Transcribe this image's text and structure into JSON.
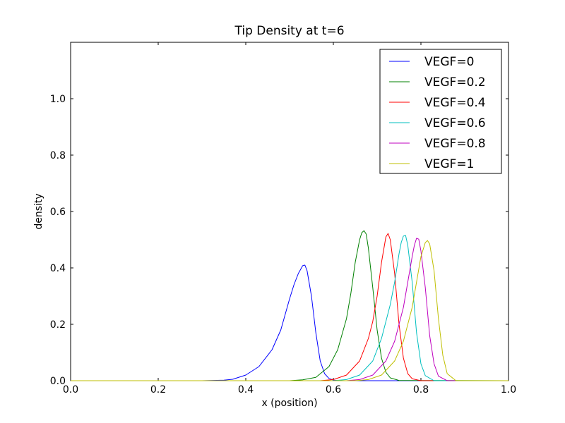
{
  "chart_data": {
    "type": "line",
    "title": "Tip Density at t=6",
    "xlabel": "x (position)",
    "ylabel": "density",
    "xlim": [
      0.0,
      1.0
    ],
    "ylim": [
      0.0,
      1.2
    ],
    "xticks": [
      "0.0",
      "0.2",
      "0.4",
      "0.6",
      "0.8",
      "1.0"
    ],
    "yticks": [
      "0.0",
      "0.2",
      "0.4",
      "0.6",
      "0.8",
      "1.0"
    ],
    "grid": false,
    "legend_position": "top-right",
    "series": [
      {
        "name": "VEGF=0",
        "color": "#0000ff",
        "x": [
          0.0,
          0.3,
          0.35,
          0.37,
          0.4,
          0.43,
          0.46,
          0.48,
          0.5,
          0.51,
          0.52,
          0.53,
          0.535,
          0.54,
          0.55,
          0.56,
          0.57,
          0.58,
          0.59,
          0.6,
          0.62,
          0.65,
          1.0
        ],
        "y": [
          0.0,
          0.0,
          0.002,
          0.005,
          0.02,
          0.05,
          0.11,
          0.18,
          0.29,
          0.34,
          0.38,
          0.408,
          0.41,
          0.39,
          0.3,
          0.17,
          0.07,
          0.025,
          0.008,
          0.002,
          0.0,
          0.0,
          0.0
        ]
      },
      {
        "name": "VEGF=0.2",
        "color": "#008000",
        "x": [
          0.0,
          0.5,
          0.53,
          0.56,
          0.59,
          0.61,
          0.63,
          0.64,
          0.65,
          0.66,
          0.665,
          0.67,
          0.675,
          0.68,
          0.69,
          0.7,
          0.71,
          0.72,
          0.73,
          0.75,
          1.0
        ],
        "y": [
          0.0,
          0.0,
          0.003,
          0.012,
          0.05,
          0.11,
          0.22,
          0.31,
          0.42,
          0.5,
          0.525,
          0.532,
          0.52,
          0.47,
          0.33,
          0.18,
          0.08,
          0.03,
          0.01,
          0.001,
          0.0
        ]
      },
      {
        "name": "VEGF=0.4",
        "color": "#ff0000",
        "x": [
          0.0,
          0.57,
          0.6,
          0.63,
          0.66,
          0.68,
          0.69,
          0.7,
          0.71,
          0.72,
          0.725,
          0.73,
          0.74,
          0.75,
          0.76,
          0.77,
          0.78,
          0.8,
          1.0
        ],
        "y": [
          0.0,
          0.0,
          0.004,
          0.02,
          0.07,
          0.15,
          0.21,
          0.3,
          0.42,
          0.51,
          0.522,
          0.5,
          0.38,
          0.2,
          0.08,
          0.025,
          0.007,
          0.0,
          0.0
        ]
      },
      {
        "name": "VEGF=0.6",
        "color": "#00bfbf",
        "x": [
          0.0,
          0.6,
          0.63,
          0.66,
          0.69,
          0.71,
          0.73,
          0.74,
          0.75,
          0.755,
          0.76,
          0.765,
          0.77,
          0.78,
          0.79,
          0.8,
          0.81,
          0.83,
          1.0
        ],
        "y": [
          0.0,
          0.0,
          0.004,
          0.02,
          0.07,
          0.15,
          0.27,
          0.35,
          0.45,
          0.49,
          0.513,
          0.515,
          0.48,
          0.35,
          0.17,
          0.06,
          0.018,
          0.0,
          0.0
        ]
      },
      {
        "name": "VEGF=0.8",
        "color": "#bf00bf",
        "x": [
          0.0,
          0.63,
          0.66,
          0.69,
          0.72,
          0.74,
          0.76,
          0.77,
          0.78,
          0.785,
          0.79,
          0.795,
          0.8,
          0.81,
          0.82,
          0.83,
          0.84,
          0.86,
          1.0
        ],
        "y": [
          0.0,
          0.0,
          0.004,
          0.02,
          0.07,
          0.14,
          0.26,
          0.35,
          0.44,
          0.48,
          0.505,
          0.502,
          0.46,
          0.33,
          0.16,
          0.06,
          0.016,
          0.0,
          0.0
        ]
      },
      {
        "name": "VEGF=1",
        "color": "#bfbf00",
        "x": [
          0.0,
          0.65,
          0.68,
          0.71,
          0.74,
          0.76,
          0.78,
          0.79,
          0.8,
          0.81,
          0.815,
          0.82,
          0.83,
          0.84,
          0.85,
          0.86,
          0.88,
          1.0
        ],
        "y": [
          0.0,
          0.0,
          0.004,
          0.02,
          0.07,
          0.14,
          0.26,
          0.35,
          0.44,
          0.49,
          0.497,
          0.485,
          0.39,
          0.22,
          0.09,
          0.025,
          0.0,
          0.0
        ]
      }
    ]
  }
}
